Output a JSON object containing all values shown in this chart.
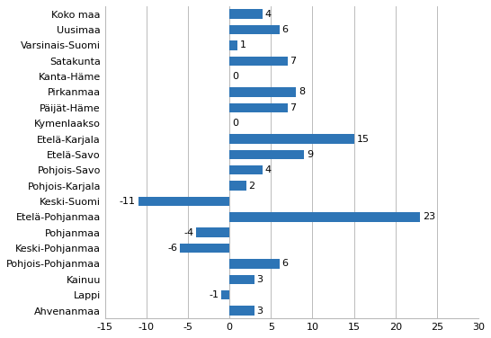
{
  "categories": [
    "Koko maa",
    "Uusimaa",
    "Varsinais-Suomi",
    "Satakunta",
    "Kanta-Häme",
    "Pirkanmaa",
    "Päijät-Häme",
    "Kymenlaakso",
    "Etelä-Karjala",
    "Etelä-Savo",
    "Pohjois-Savo",
    "Pohjois-Karjala",
    "Keski-Suomi",
    "Etelä-Pohjanmaa",
    "Pohjanmaa",
    "Keski-Pohjanmaa",
    "Pohjois-Pohjanmaa",
    "Kainuu",
    "Lappi",
    "Ahvenanmaa"
  ],
  "values": [
    4,
    6,
    1,
    7,
    0,
    8,
    7,
    0,
    15,
    9,
    4,
    2,
    -11,
    23,
    -4,
    -6,
    6,
    3,
    -1,
    3
  ],
  "bar_color": "#2E75B6",
  "xlim": [
    -15,
    30
  ],
  "xticks": [
    -15,
    -10,
    -5,
    0,
    5,
    10,
    15,
    20,
    25,
    30
  ],
  "bar_height": 0.6,
  "label_fontsize": 8.0,
  "tick_fontsize": 8.0,
  "value_fontsize": 8.0,
  "grid_color": "#BBBBBB",
  "background_color": "#FFFFFF"
}
